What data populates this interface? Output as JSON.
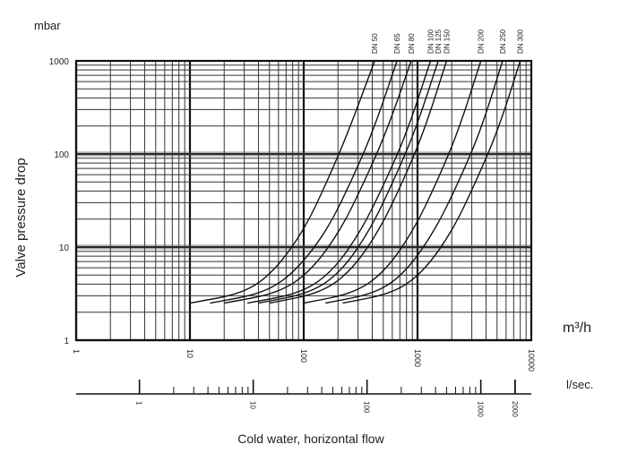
{
  "chart_data": {
    "type": "line",
    "title": "",
    "unit_label": "mbar",
    "ylabel": "Valve pressure drop",
    "xlabel": "Cold water, horizontal flow",
    "x_unit_label": "m³/h",
    "x2_unit_label": "l/sec.",
    "x_scale": "log",
    "y_scale": "log",
    "xlim": [
      1,
      10000
    ],
    "ylim": [
      1,
      1000
    ],
    "x_tick_labels": [
      "1",
      "10",
      "100",
      "1000",
      "10000"
    ],
    "y_tick_labels": [
      "1",
      "10",
      "100",
      "1000"
    ],
    "x2_tick_labels": [
      "1",
      "10",
      "100",
      "1000",
      "2000"
    ],
    "x2_tick_values_m3h": [
      3.6,
      36,
      360,
      3600,
      7200
    ],
    "grid": true,
    "series": [
      {
        "name": "DN 50",
        "x": [
          10,
          30,
          55,
          100,
          160,
          250,
          420
        ],
        "y": [
          2.5,
          3.2,
          5.5,
          15,
          50,
          180,
          1000
        ]
      },
      {
        "name": "DN 65",
        "x": [
          15,
          45,
          85,
          160,
          260,
          410,
          660
        ],
        "y": [
          2.5,
          3.2,
          5.5,
          15,
          50,
          180,
          1000
        ]
      },
      {
        "name": "DN 80",
        "x": [
          20,
          60,
          115,
          210,
          340,
          540,
          880
        ],
        "y": [
          2.5,
          3.2,
          5.5,
          15,
          50,
          180,
          1000
        ]
      },
      {
        "name": "DN 100",
        "x": [
          32,
          95,
          180,
          320,
          520,
          820,
          1300
        ],
        "y": [
          2.5,
          3.2,
          5.5,
          15,
          50,
          180,
          1000
        ]
      },
      {
        "name": "DN 125",
        "x": [
          40,
          115,
          215,
          380,
          610,
          960,
          1520
        ],
        "y": [
          2.5,
          3.2,
          5.5,
          15,
          50,
          180,
          1000
        ]
      },
      {
        "name": "DN 150",
        "x": [
          50,
          140,
          260,
          460,
          740,
          1150,
          1800
        ],
        "y": [
          2.5,
          3.2,
          5.5,
          15,
          50,
          180,
          1000
        ]
      },
      {
        "name": "DN 200",
        "x": [
          100,
          280,
          520,
          920,
          1480,
          2300,
          3600
        ],
        "y": [
          2.5,
          3.2,
          5.5,
          15,
          50,
          180,
          1000
        ]
      },
      {
        "name": "DN 250",
        "x": [
          155,
          440,
          800,
          1420,
          2300,
          3600,
          5600
        ],
        "y": [
          2.5,
          3.2,
          5.5,
          15,
          50,
          180,
          1000
        ]
      },
      {
        "name": "DN 300",
        "x": [
          220,
          620,
          1140,
          2030,
          3250,
          5100,
          8000
        ],
        "y": [
          2.5,
          3.2,
          5.5,
          15,
          50,
          180,
          1000
        ]
      }
    ]
  }
}
